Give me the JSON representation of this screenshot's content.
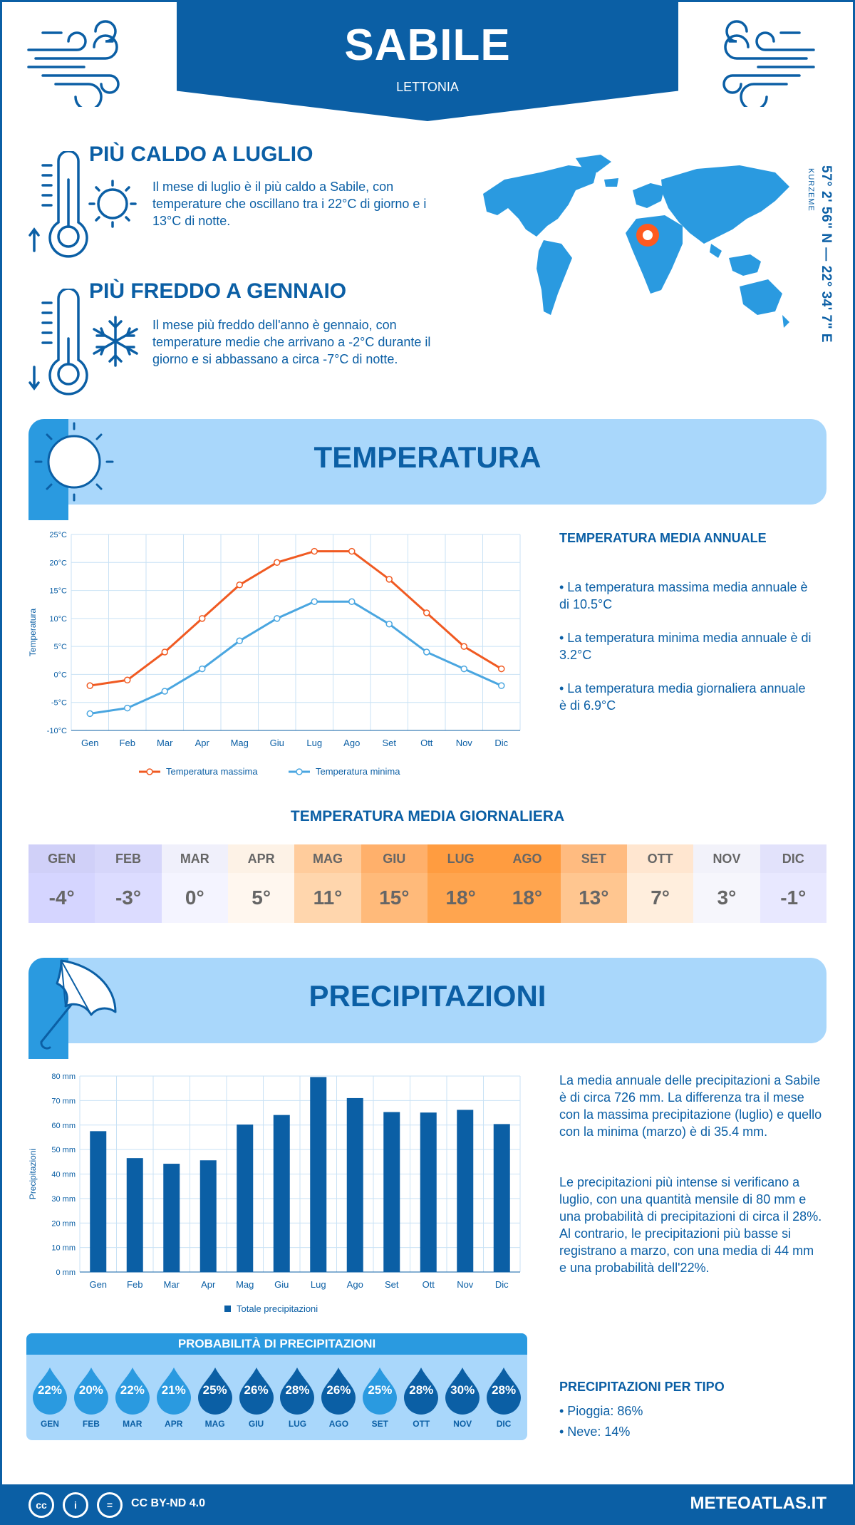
{
  "header": {
    "city": "SABILE",
    "country": "LETTONIA",
    "coordinates": "57° 2' 56\" N — 22° 34' 7\" E",
    "region": "KURZEME"
  },
  "warmest": {
    "title": "PIÙ CALDO A LUGLIO",
    "text": "Il mese di luglio è il più caldo a Sabile, con temperature che oscillano tra i 22°C di giorno e i 13°C di notte."
  },
  "coldest": {
    "title": "PIÙ FREDDO A GENNAIO",
    "text": "Il mese più freddo dell'anno è gennaio, con temperature medie che arrivano a -2°C durante il giorno e si abbassano a circa -7°C di notte."
  },
  "temperature": {
    "section_title": "TEMPERATURA",
    "side_title": "TEMPERATURA MEDIA ANNUALE",
    "bullets": [
      "• La temperatura massima media annuale è di 10.5°C",
      "• La temperatura minima media annuale è di 3.2°C",
      "• La temperatura media giornaliera annuale è di 6.9°C"
    ],
    "daily_title": "TEMPERATURA MEDIA GIORNALIERA",
    "daily": [
      {
        "month": "GEN",
        "value": "-4°",
        "bg": "#d5d5ff",
        "hbg": "#d0d0f8"
      },
      {
        "month": "FEB",
        "value": "-3°",
        "bg": "#dcdcff",
        "hbg": "#d6d6fa"
      },
      {
        "month": "MAR",
        "value": "0°",
        "bg": "#f4f4ff",
        "hbg": "#f0f0fb"
      },
      {
        "month": "APR",
        "value": "5°",
        "bg": "#fff7ef",
        "hbg": "#fdf2e6"
      },
      {
        "month": "MAG",
        "value": "11°",
        "bg": "#ffd6ad",
        "hbg": "#ffcc9c"
      },
      {
        "month": "GIU",
        "value": "15°",
        "bg": "#ffba7a",
        "hbg": "#ffb06b"
      },
      {
        "month": "LUG",
        "value": "18°",
        "bg": "#ffa54f",
        "hbg": "#ff9c40"
      },
      {
        "month": "AGO",
        "value": "18°",
        "bg": "#ffa54f",
        "hbg": "#ff9c40"
      },
      {
        "month": "SET",
        "value": "13°",
        "bg": "#ffc690",
        "hbg": "#ffbb80"
      },
      {
        "month": "OTT",
        "value": "7°",
        "bg": "#ffeedd",
        "hbg": "#ffe6d0"
      },
      {
        "month": "NOV",
        "value": "3°",
        "bg": "#f6f6fc",
        "hbg": "#f2f2fa"
      },
      {
        "month": "DIC",
        "value": "-1°",
        "bg": "#e8e8ff",
        "hbg": "#e2e2fb"
      }
    ]
  },
  "precipitation": {
    "section_title": "PRECIPITAZIONI",
    "paragraph1": "La media annuale delle precipitazioni a Sabile è di circa 726 mm. La differenza tra il mese con la massima precipitazione (luglio) e quello con la minima (marzo) è di 35.4 mm.",
    "paragraph2": "Le precipitazioni più intense si verificano a luglio, con una quantità mensile di 80 mm e una probabilità di precipitazioni di circa il 28%. Al contrario, le precipitazioni più basse si registrano a marzo, con una media di 44 mm e una probabilità dell'22%.",
    "prob_title": "PROBABILITÀ DI PRECIPITAZIONI",
    "probabilities": [
      {
        "month": "GEN",
        "pct": "22%",
        "dark": false
      },
      {
        "month": "FEB",
        "pct": "20%",
        "dark": false
      },
      {
        "month": "MAR",
        "pct": "22%",
        "dark": false
      },
      {
        "month": "APR",
        "pct": "21%",
        "dark": false
      },
      {
        "month": "MAG",
        "pct": "25%",
        "dark": true
      },
      {
        "month": "GIU",
        "pct": "26%",
        "dark": true
      },
      {
        "month": "LUG",
        "pct": "28%",
        "dark": true
      },
      {
        "month": "AGO",
        "pct": "26%",
        "dark": true
      },
      {
        "month": "SET",
        "pct": "25%",
        "dark": false
      },
      {
        "month": "OTT",
        "pct": "28%",
        "dark": true
      },
      {
        "month": "NOV",
        "pct": "30%",
        "dark": true
      },
      {
        "month": "DIC",
        "pct": "28%",
        "dark": true
      }
    ],
    "type_title": "PRECIPITAZIONI PER TIPO",
    "types": [
      "• Pioggia: 86%",
      "• Neve: 14%"
    ]
  },
  "footer": {
    "license": "CC BY-ND 4.0",
    "brand": "METEOATLAS.IT",
    "cc_icons": [
      "cc",
      "i",
      "="
    ]
  },
  "colors": {
    "primary": "#0b5fa5",
    "light": "#a9d7fb",
    "max_line": "#f05a22",
    "min_line": "#4aa6e0",
    "bar": "#0b5fa5",
    "drop_light": "#2a9ae0",
    "drop_dark": "#0b5fa5"
  },
  "chart_data": [
    {
      "type": "line",
      "categories": [
        "Gen",
        "Feb",
        "Mar",
        "Apr",
        "Mag",
        "Giu",
        "Lug",
        "Ago",
        "Set",
        "Ott",
        "Nov",
        "Dic"
      ],
      "series": [
        {
          "name": "Temperatura massima",
          "values": [
            -2,
            -1,
            4,
            10,
            16,
            20,
            22,
            22,
            17,
            11,
            5,
            1
          ]
        },
        {
          "name": "Temperatura minima",
          "values": [
            -7,
            -6,
            -3,
            1,
            6,
            10,
            13,
            13,
            9,
            4,
            1,
            -2
          ]
        }
      ],
      "ylabel": "Temperatura",
      "yticks": [
        "25°C",
        "20°C",
        "15°C",
        "10°C",
        "5°C",
        "0°C",
        "-5°C",
        "-10°C"
      ],
      "ylim": [
        -10,
        25
      ],
      "grid": true,
      "legend": "bottom"
    },
    {
      "type": "bar",
      "categories": [
        "Gen",
        "Feb",
        "Mar",
        "Apr",
        "Mag",
        "Giu",
        "Lug",
        "Ago",
        "Set",
        "Ott",
        "Nov",
        "Dic"
      ],
      "series": [
        {
          "name": "Totale precipitazioni",
          "values": [
            57.5,
            46.5,
            44.2,
            45.6,
            60.2,
            64.1,
            79.6,
            71,
            65.3,
            65.1,
            66.2,
            60.4
          ]
        }
      ],
      "ylabel": "Precipitazioni",
      "yticks": [
        "80 mm",
        "70 mm",
        "60 mm",
        "50 mm",
        "40 mm",
        "30 mm",
        "20 mm",
        "10 mm",
        "0 mm"
      ],
      "ylim": [
        0,
        80
      ],
      "grid": true,
      "legend": "bottom"
    }
  ]
}
